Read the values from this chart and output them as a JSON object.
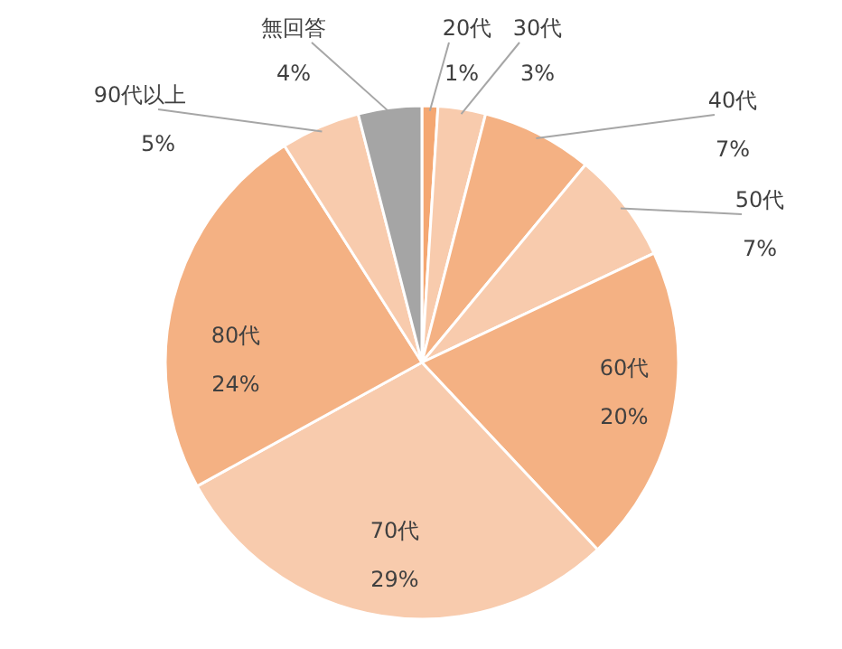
{
  "chart_data": {
    "type": "pie",
    "categories": [
      "20代",
      "30代",
      "40代",
      "50代",
      "60代",
      "70代",
      "80代",
      "90代以上",
      "無回答"
    ],
    "values": [
      1,
      3,
      7,
      7,
      20,
      29,
      24,
      5,
      4
    ],
    "colors": [
      "#f4a772",
      "#f8cbad",
      "#f4b183",
      "#f8cbad",
      "#f4b183",
      "#f8cbad",
      "#f4b183",
      "#f8cbad",
      "#a5a5a5"
    ],
    "value_labels": [
      "1%",
      "3%",
      "7%",
      "7%",
      "20%",
      "29%",
      "24%",
      "5%",
      "4%"
    ]
  }
}
